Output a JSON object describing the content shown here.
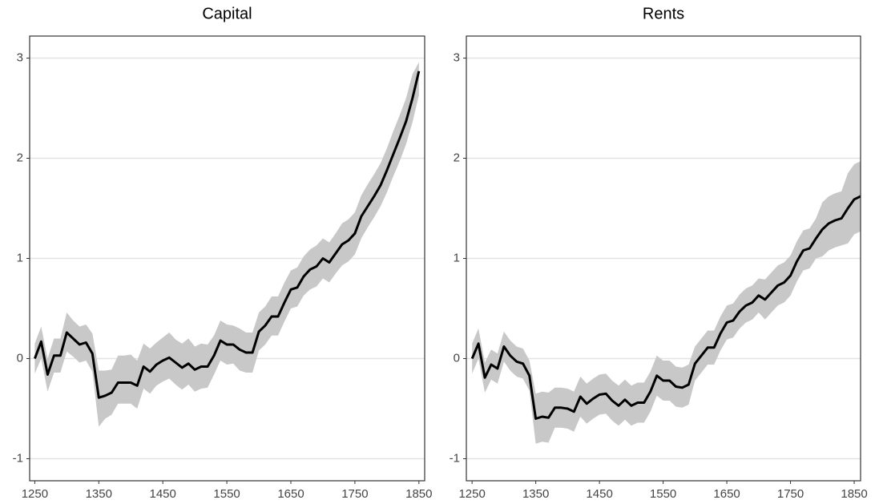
{
  "chart_data": [
    {
      "type": "line",
      "title": "Capital",
      "x": [
        1250,
        1260,
        1270,
        1280,
        1290,
        1300,
        1310,
        1320,
        1330,
        1340,
        1350,
        1360,
        1370,
        1380,
        1390,
        1400,
        1410,
        1420,
        1430,
        1440,
        1450,
        1460,
        1470,
        1480,
        1490,
        1500,
        1510,
        1520,
        1530,
        1540,
        1550,
        1560,
        1570,
        1580,
        1590,
        1600,
        1610,
        1620,
        1630,
        1640,
        1650,
        1660,
        1670,
        1680,
        1690,
        1700,
        1710,
        1720,
        1730,
        1740,
        1750,
        1760,
        1770,
        1780,
        1790,
        1800,
        1810,
        1820,
        1830,
        1840,
        1850
      ],
      "values": [
        0.0,
        0.17,
        -0.16,
        0.03,
        0.03,
        0.26,
        0.2,
        0.14,
        0.16,
        0.05,
        -0.39,
        -0.37,
        -0.34,
        -0.24,
        -0.24,
        -0.24,
        -0.27,
        -0.08,
        -0.13,
        -0.06,
        -0.02,
        0.01,
        -0.04,
        -0.09,
        -0.05,
        -0.11,
        -0.08,
        -0.08,
        0.03,
        0.18,
        0.14,
        0.14,
        0.09,
        0.06,
        0.06,
        0.27,
        0.33,
        0.42,
        0.42,
        0.56,
        0.69,
        0.71,
        0.82,
        0.89,
        0.92,
        1.0,
        0.96,
        1.05,
        1.14,
        1.18,
        1.25,
        1.42,
        1.52,
        1.62,
        1.73,
        1.88,
        2.04,
        2.2,
        2.37,
        2.6,
        2.87
      ],
      "lower": [
        -0.15,
        0.0,
        -0.33,
        -0.14,
        -0.14,
        0.07,
        0.02,
        -0.04,
        -0.02,
        -0.13,
        -0.68,
        -0.6,
        -0.56,
        -0.45,
        -0.45,
        -0.45,
        -0.5,
        -0.3,
        -0.35,
        -0.27,
        -0.23,
        -0.2,
        -0.26,
        -0.31,
        -0.26,
        -0.33,
        -0.3,
        -0.29,
        -0.16,
        -0.02,
        -0.06,
        -0.05,
        -0.12,
        -0.14,
        -0.14,
        0.08,
        0.14,
        0.23,
        0.23,
        0.37,
        0.5,
        0.52,
        0.63,
        0.69,
        0.72,
        0.8,
        0.76,
        0.85,
        0.93,
        0.97,
        1.04,
        1.2,
        1.31,
        1.41,
        1.52,
        1.66,
        1.82,
        1.97,
        2.14,
        2.36,
        2.63
      ],
      "upper": [
        0.15,
        0.32,
        0.0,
        0.2,
        0.2,
        0.46,
        0.38,
        0.32,
        0.34,
        0.25,
        -0.12,
        -0.12,
        -0.11,
        0.03,
        0.03,
        0.04,
        -0.02,
        0.15,
        0.1,
        0.16,
        0.21,
        0.26,
        0.19,
        0.15,
        0.2,
        0.12,
        0.15,
        0.14,
        0.23,
        0.38,
        0.34,
        0.33,
        0.3,
        0.26,
        0.26,
        0.46,
        0.52,
        0.62,
        0.62,
        0.76,
        0.88,
        0.91,
        1.02,
        1.09,
        1.13,
        1.2,
        1.16,
        1.25,
        1.35,
        1.39,
        1.46,
        1.63,
        1.74,
        1.84,
        1.95,
        2.1,
        2.27,
        2.43,
        2.6,
        2.84,
        2.96
      ],
      "color": "#000000",
      "band_color": "#c8c8c8",
      "xlim": [
        1242,
        1859
      ],
      "ylim": [
        -1.22,
        3.22
      ],
      "xticks": [
        1250,
        1350,
        1450,
        1550,
        1650,
        1750,
        1850
      ],
      "yticks": [
        -1,
        0,
        1,
        2,
        3
      ],
      "grid": true
    },
    {
      "type": "line",
      "title": "Rents",
      "x": [
        1250,
        1260,
        1270,
        1280,
        1290,
        1300,
        1310,
        1320,
        1330,
        1340,
        1350,
        1360,
        1370,
        1380,
        1390,
        1400,
        1410,
        1420,
        1430,
        1440,
        1450,
        1460,
        1470,
        1480,
        1490,
        1500,
        1510,
        1520,
        1530,
        1540,
        1550,
        1560,
        1570,
        1580,
        1590,
        1600,
        1610,
        1620,
        1630,
        1640,
        1650,
        1660,
        1670,
        1680,
        1690,
        1700,
        1710,
        1720,
        1730,
        1740,
        1750,
        1760,
        1770,
        1780,
        1790,
        1800,
        1810,
        1820,
        1830,
        1840,
        1850,
        1860
      ],
      "values": [
        0.0,
        0.15,
        -0.19,
        -0.06,
        -0.1,
        0.12,
        0.03,
        -0.03,
        -0.05,
        -0.17,
        -0.6,
        -0.58,
        -0.59,
        -0.49,
        -0.49,
        -0.5,
        -0.53,
        -0.38,
        -0.45,
        -0.4,
        -0.36,
        -0.35,
        -0.42,
        -0.47,
        -0.41,
        -0.47,
        -0.44,
        -0.44,
        -0.33,
        -0.17,
        -0.22,
        -0.22,
        -0.28,
        -0.29,
        -0.26,
        -0.05,
        0.03,
        0.11,
        0.11,
        0.25,
        0.36,
        0.38,
        0.47,
        0.53,
        0.56,
        0.63,
        0.59,
        0.66,
        0.73,
        0.76,
        0.83,
        0.97,
        1.08,
        1.1,
        1.2,
        1.29,
        1.35,
        1.38,
        1.4,
        1.5,
        1.59,
        1.62
      ],
      "lower": [
        -0.15,
        0.0,
        -0.34,
        -0.21,
        -0.25,
        -0.03,
        -0.12,
        -0.18,
        -0.2,
        -0.32,
        -0.85,
        -0.83,
        -0.84,
        -0.69,
        -0.69,
        -0.7,
        -0.73,
        -0.58,
        -0.65,
        -0.6,
        -0.56,
        -0.55,
        -0.62,
        -0.67,
        -0.61,
        -0.67,
        -0.64,
        -0.64,
        -0.53,
        -0.37,
        -0.42,
        -0.42,
        -0.48,
        -0.49,
        -0.46,
        -0.22,
        -0.14,
        -0.06,
        -0.06,
        0.08,
        0.19,
        0.21,
        0.3,
        0.36,
        0.39,
        0.46,
        0.39,
        0.46,
        0.53,
        0.56,
        0.63,
        0.77,
        0.88,
        0.9,
        1.0,
        1.02,
        1.08,
        1.11,
        1.13,
        1.15,
        1.24,
        1.27
      ],
      "upper": [
        0.15,
        0.3,
        -0.04,
        0.09,
        0.05,
        0.27,
        0.18,
        0.12,
        0.1,
        -0.02,
        -0.35,
        -0.33,
        -0.34,
        -0.29,
        -0.29,
        -0.3,
        -0.33,
        -0.18,
        -0.25,
        -0.2,
        -0.16,
        -0.15,
        -0.22,
        -0.27,
        -0.21,
        -0.27,
        -0.24,
        -0.24,
        -0.13,
        0.03,
        -0.02,
        -0.02,
        -0.08,
        -0.09,
        -0.06,
        0.12,
        0.2,
        0.28,
        0.28,
        0.42,
        0.53,
        0.55,
        0.64,
        0.7,
        0.73,
        0.8,
        0.79,
        0.86,
        0.93,
        0.96,
        1.03,
        1.17,
        1.28,
        1.3,
        1.4,
        1.56,
        1.62,
        1.65,
        1.67,
        1.85,
        1.94,
        1.97
      ],
      "color": "#000000",
      "band_color": "#c8c8c8",
      "xlim": [
        1241,
        1860
      ],
      "ylim": [
        -1.22,
        3.22
      ],
      "xticks": [
        1250,
        1350,
        1450,
        1550,
        1650,
        1750,
        1850
      ],
      "yticks": [
        -1,
        0,
        1,
        2,
        3
      ],
      "grid": true
    }
  ]
}
